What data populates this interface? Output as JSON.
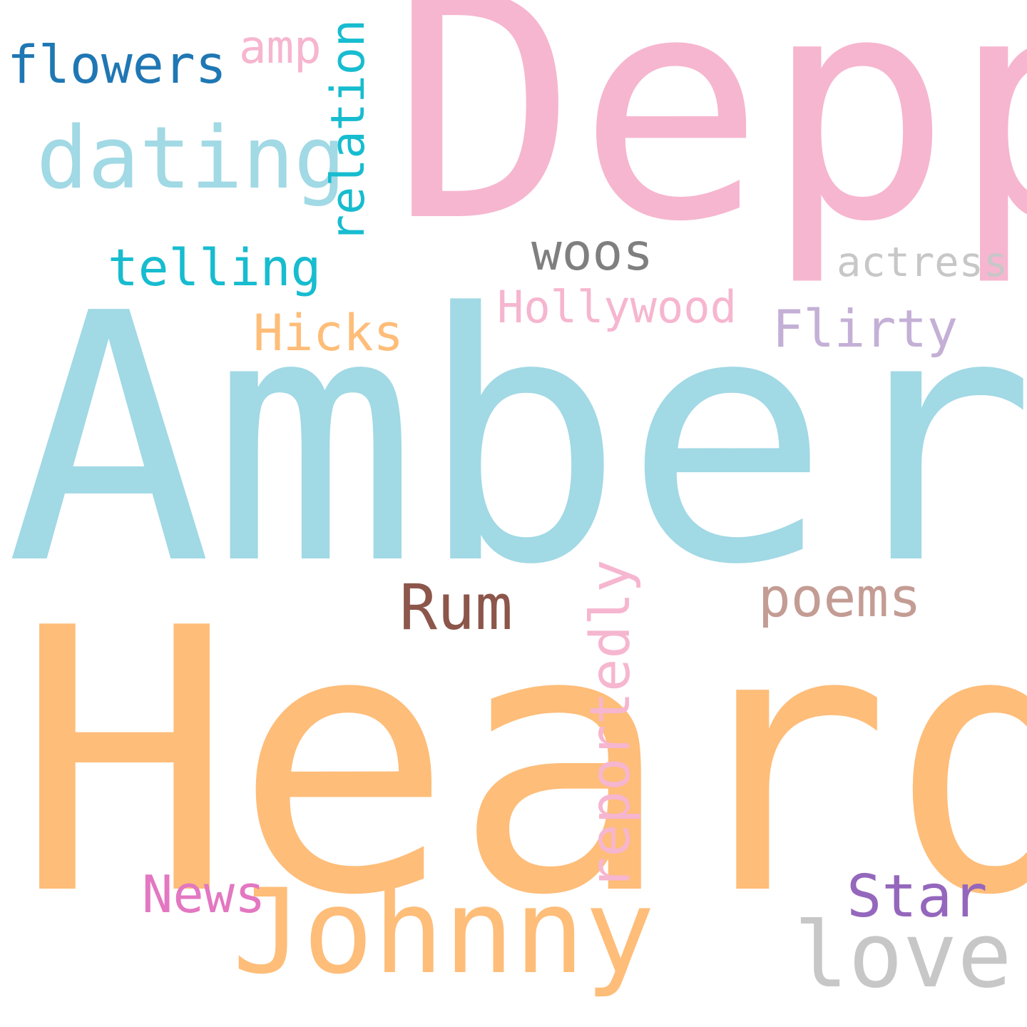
{
  "words": {
    "depp": {
      "text": "Depp",
      "color": "#f6b6cf"
    },
    "amber": {
      "text": "Amber",
      "color": "#a1d9e5"
    },
    "heard": {
      "text": "Heard",
      "color": "#febd79"
    },
    "johnny": {
      "text": "Johnny",
      "color": "#febd79"
    },
    "dating": {
      "text": "dating",
      "color": "#a1d9e5"
    },
    "flowers": {
      "text": "flowers",
      "color": "#1f77b4"
    },
    "amp": {
      "text": "amp",
      "color": "#f6b6cf"
    },
    "relation": {
      "text": "relation",
      "color": "#17bccf"
    },
    "telling": {
      "text": "telling",
      "color": "#17bccf"
    },
    "woos": {
      "text": "woos",
      "color": "#7f7f7f"
    },
    "actress": {
      "text": "actress",
      "color": "#c7c7c7"
    },
    "hollywood": {
      "text": "Hollywood",
      "color": "#f6b6cf"
    },
    "hicks": {
      "text": "Hicks",
      "color": "#febd79"
    },
    "flirty": {
      "text": "Flirty",
      "color": "#c4b0d6"
    },
    "rum": {
      "text": "Rum",
      "color": "#8c564b"
    },
    "poems": {
      "text": "poems",
      "color": "#c39c94"
    },
    "reportedly": {
      "text": "reportedly",
      "color": "#f6b6cf"
    },
    "news": {
      "text": "News",
      "color": "#e377c1"
    },
    "star": {
      "text": "Star",
      "color": "#9467bd"
    },
    "love": {
      "text": "love",
      "color": "#c7c7c7"
    }
  }
}
